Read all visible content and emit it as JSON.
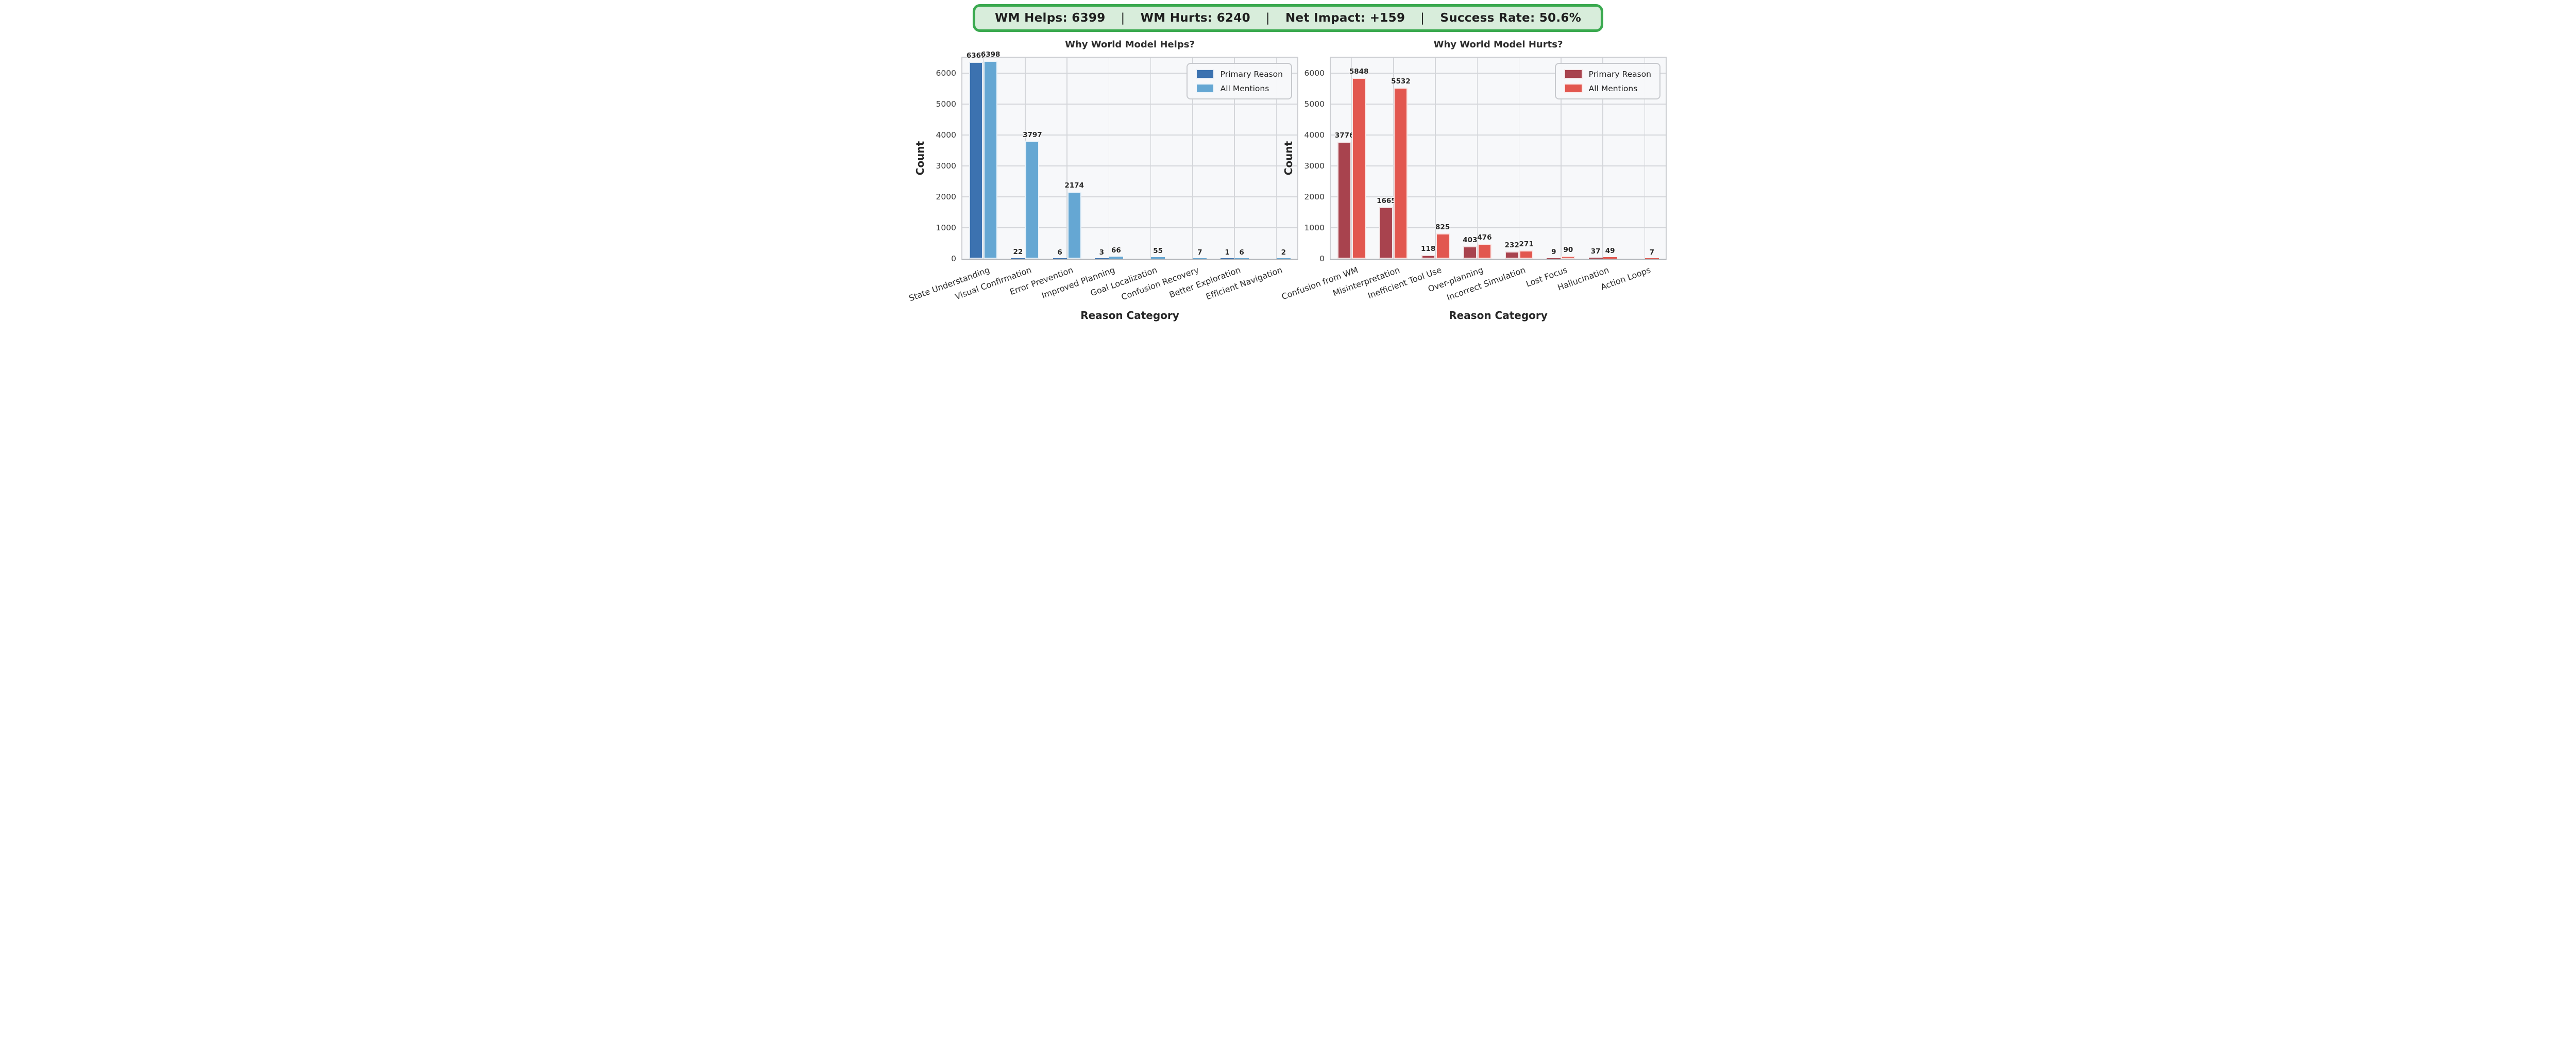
{
  "banner": {
    "segments": [
      "WM Helps: 6399",
      "WM Hurts: 6240",
      "Net Impact: +159",
      "Success Rate: 50.6%"
    ],
    "separator": "|",
    "background": "#d8eddb",
    "border_color": "#3aa94f"
  },
  "chart_data": [
    {
      "type": "bar",
      "title": "Why World Model Helps?",
      "xlabel": "Reason Category",
      "ylabel": "Count",
      "categories": [
        "State Understanding",
        "Visual Confirmation",
        "Error Prevention",
        "Improved Planning",
        "Goal Localization",
        "Confusion Recovery",
        "Better Exploration",
        "Efficient Navigation"
      ],
      "series": [
        {
          "name": "Primary Reason",
          "color": "#3c72b0",
          "values": [
            6367,
            22,
            6,
            3,
            0,
            0,
            1,
            0
          ]
        },
        {
          "name": "All Mentions",
          "color": "#65a7d3",
          "values": [
            6398,
            3797,
            2174,
            66,
            55,
            7,
            6,
            2
          ]
        }
      ],
      "ylim": [
        0,
        6500
      ],
      "yticks": [
        0,
        1000,
        2000,
        3000,
        4000,
        5000,
        6000
      ],
      "grid": true,
      "legend_position": "upper right",
      "plot_background": "#f7f8fa"
    },
    {
      "type": "bar",
      "title": "Why World Model Hurts?",
      "xlabel": "Reason Category",
      "ylabel": "Count",
      "categories": [
        "Confusion from WM",
        "Misinterpretation",
        "Inefficient Tool Use",
        "Over-planning",
        "Incorrect Simulation",
        "Lost Focus",
        "Hallucination",
        "Action Loops"
      ],
      "series": [
        {
          "name": "Primary Reason",
          "color": "#a8434e",
          "values": [
            3776,
            1665,
            118,
            403,
            232,
            9,
            37,
            0
          ]
        },
        {
          "name": "All Mentions",
          "color": "#e2574f",
          "values": [
            5848,
            5532,
            825,
            476,
            271,
            90,
            49,
            7
          ]
        }
      ],
      "ylim": [
        0,
        6500
      ],
      "yticks": [
        0,
        1000,
        2000,
        3000,
        4000,
        5000,
        6000
      ],
      "grid": true,
      "legend_position": "upper right",
      "plot_background": "#f7f8fa"
    }
  ]
}
